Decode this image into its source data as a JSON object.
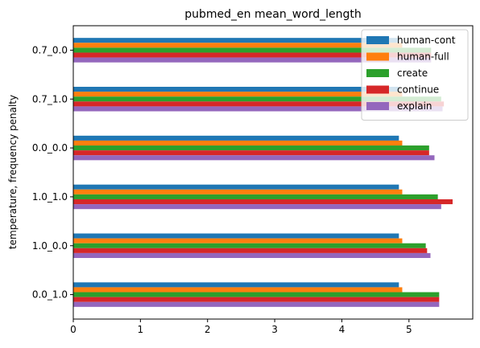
{
  "chart_data": {
    "type": "bar",
    "orientation": "horizontal",
    "title": "pubmed_en mean_word_length",
    "xlabel": "",
    "ylabel": "temperature, frequency penalty",
    "categories": [
      "0.0_1.0",
      "1.0_0.0",
      "1.0_1.0",
      "0.0_0.0",
      "0.7_1.0",
      "0.7_0.0"
    ],
    "xlim": [
      0,
      5.95
    ],
    "xticks": [
      0,
      1,
      2,
      3,
      4,
      5
    ],
    "grid": false,
    "legend_position": "top-right",
    "series": [
      {
        "name": "human-cont",
        "color": "#1f77b4",
        "values": [
          4.85,
          4.85,
          4.85,
          4.85,
          4.85,
          4.85
        ]
      },
      {
        "name": "human-full",
        "color": "#ff7f0e",
        "values": [
          4.9,
          4.9,
          4.9,
          4.9,
          4.9,
          4.9
        ]
      },
      {
        "name": "create",
        "color": "#2ca02c",
        "values": [
          5.45,
          5.25,
          5.43,
          5.3,
          5.48,
          5.33
        ]
      },
      {
        "name": "continue",
        "color": "#d62728",
        "values": [
          5.45,
          5.27,
          5.65,
          5.3,
          5.52,
          5.33
        ]
      },
      {
        "name": "explain",
        "color": "#9467bd",
        "values": [
          5.45,
          5.32,
          5.48,
          5.38,
          5.5,
          5.33
        ]
      }
    ]
  }
}
